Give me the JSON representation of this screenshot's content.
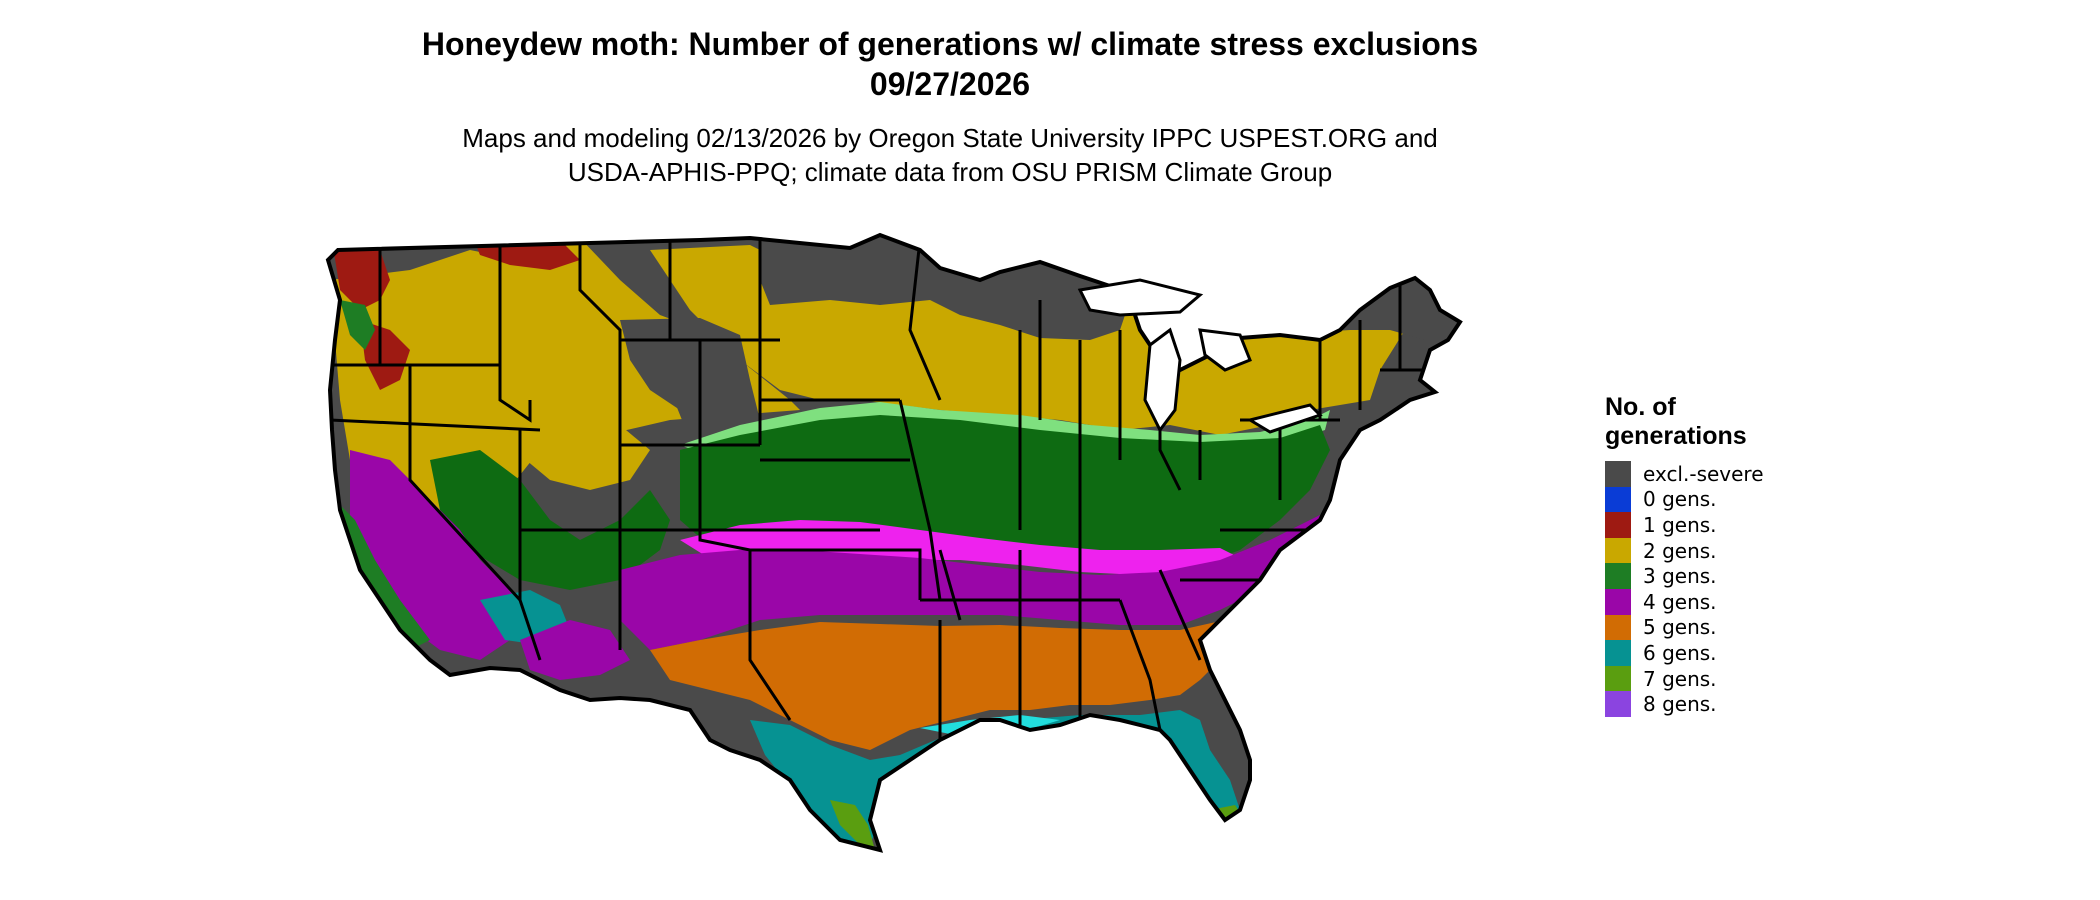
{
  "header": {
    "title_line1": "Honeydew moth: Number of generations w/ climate stress exclusions",
    "title_line2": "09/27/2026",
    "subtitle_line1": "Maps and modeling 02/13/2026 by Oregon State University IPPC USPEST.ORG and",
    "subtitle_line2": "USDA-APHIS-PPQ; climate data from OSU PRISM Climate Group"
  },
  "legend": {
    "title_line1": "No. of",
    "title_line2": "generations",
    "items": [
      {
        "label": "excl.-severe",
        "color": "#4a4a4a"
      },
      {
        "label": "0 gens.",
        "color": "#0a3cd6"
      },
      {
        "label": "1 gens.",
        "color": "#9e1a12"
      },
      {
        "label": "2 gens.",
        "color": "#c9a800"
      },
      {
        "label": "3 gens.",
        "color": "#1e7d24"
      },
      {
        "label": "4 gens.",
        "color": "#9a06a8"
      },
      {
        "label": "5 gens.",
        "color": "#d16c04"
      },
      {
        "label": "6 gens.",
        "color": "#069292"
      },
      {
        "label": "7 gens.",
        "color": "#5a9e10"
      },
      {
        "label": "8 gens.",
        "color": "#8b44e0"
      }
    ]
  },
  "map": {
    "region": "contiguous-us",
    "accent_colors": {
      "light-green": "#7fe07f",
      "magenta": "#ee22ee",
      "cyan": "#22dddd"
    }
  }
}
